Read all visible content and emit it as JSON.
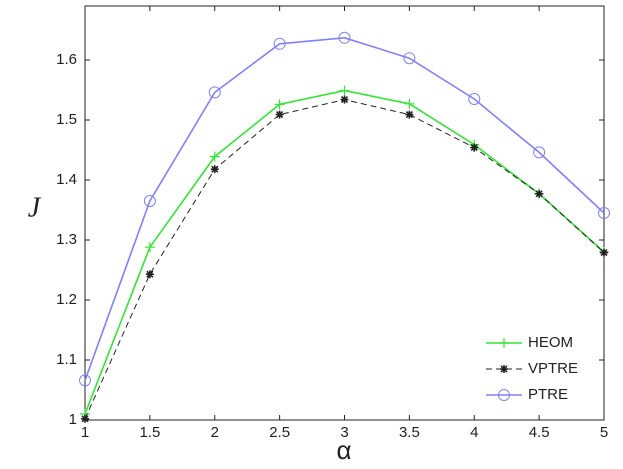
{
  "chart_data": {
    "type": "line",
    "xlabel": "α",
    "ylabel": "J",
    "x": [
      1,
      1.5,
      2,
      2.5,
      3,
      3.5,
      4,
      4.5,
      5
    ],
    "xlim": [
      1,
      5
    ],
    "xticks": [
      1,
      1.5,
      2,
      2.5,
      3,
      3.5,
      4,
      4.5,
      5
    ],
    "ylim": [
      1,
      1.69
    ],
    "yticks": [
      1,
      1.1,
      1.2,
      1.3,
      1.4,
      1.5,
      1.6
    ],
    "grid": false,
    "legend": "lower right",
    "series": [
      {
        "name": "HEOM",
        "color": "#33e633",
        "marker": "plus",
        "dashed": false,
        "values": [
          1.01,
          1.288,
          1.439,
          1.526,
          1.549,
          1.527,
          1.459,
          1.377,
          1.28
        ]
      },
      {
        "name": "VPTRE",
        "color": "#222222",
        "marker": "star",
        "dashed": true,
        "values": [
          1.002,
          1.243,
          1.418,
          1.509,
          1.534,
          1.509,
          1.454,
          1.377,
          1.279
        ]
      },
      {
        "name": "PTRE",
        "color": "#8080ff",
        "marker": "circle",
        "dashed": false,
        "values": [
          1.066,
          1.365,
          1.546,
          1.627,
          1.637,
          1.603,
          1.535,
          1.446,
          1.345
        ]
      }
    ]
  }
}
